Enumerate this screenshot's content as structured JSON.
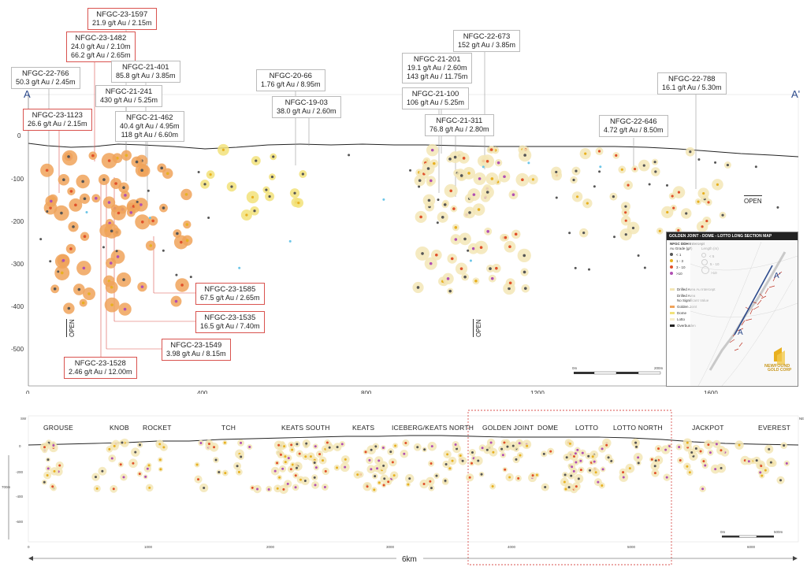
{
  "sections": {
    "start_label": "A",
    "end_label": "A'",
    "open_labels": [
      "OPEN",
      "OPEN",
      "OPEN"
    ]
  },
  "axis_upper": {
    "x_ticks": [
      "0",
      "400",
      "800",
      "1200",
      "1600"
    ],
    "y_ticks": [
      "0",
      "-100",
      "-200",
      "-300",
      "-400",
      "-500"
    ]
  },
  "callouts": [
    {
      "hole": "NFGC-23-1597",
      "lines": [
        "21.9 g/t Au / 2.15m"
      ],
      "style": "red"
    },
    {
      "hole": "NFGC-23-1482",
      "lines": [
        "24.0 g/t Au / 2.10m",
        "66.2 g/t Au / 2.65m"
      ],
      "style": "red"
    },
    {
      "hole": "NFGC-21-401",
      "lines": [
        "85.8 g/t Au / 3.85m"
      ],
      "style": "grey"
    },
    {
      "hole": "NFGC-22-766",
      "lines": [
        "50.3 g/t Au / 2.45m"
      ],
      "style": "grey"
    },
    {
      "hole": "NFGC-21-241",
      "lines": [
        "430 g/t Au / 5.25m"
      ],
      "style": "grey"
    },
    {
      "hole": "NFGC-23-1123",
      "lines": [
        "26.6 g/t Au / 2.15m"
      ],
      "style": "red"
    },
    {
      "hole": "NFGC-21-462",
      "lines": [
        "40.4 g/t Au / 4.95m",
        "118 g/t Au / 6.60m"
      ],
      "style": "grey"
    },
    {
      "hole": "NFGC-20-66",
      "lines": [
        "1.76 g/t Au / 8.95m"
      ],
      "style": "grey"
    },
    {
      "hole": "NFGC-19-03",
      "lines": [
        "38.0 g/t Au / 2.60m"
      ],
      "style": "grey"
    },
    {
      "hole": "NFGC-22-673",
      "lines": [
        "152 g/t Au / 3.85m"
      ],
      "style": "grey"
    },
    {
      "hole": "NFGC-21-201",
      "lines": [
        "19.1 g/t Au / 2.60m",
        "143 g/t Au / 11.75m"
      ],
      "style": "grey"
    },
    {
      "hole": "NFGC-21-100",
      "lines": [
        "106 g/t Au / 5.25m"
      ],
      "style": "grey"
    },
    {
      "hole": "NFGC-21-311",
      "lines": [
        "76.8 g/t Au / 2.80m"
      ],
      "style": "grey"
    },
    {
      "hole": "NFGC-22-788",
      "lines": [
        "16.1 g/t Au / 5.30m"
      ],
      "style": "grey"
    },
    {
      "hole": "NFGC-22-646",
      "lines": [
        "4.72 g/t Au / 8.50m"
      ],
      "style": "grey"
    },
    {
      "hole": "NFGC-23-1585",
      "lines": [
        "67.5 g/t Au / 2.65m"
      ],
      "style": "red"
    },
    {
      "hole": "NFGC-23-1535",
      "lines": [
        "16.5 g/t Au / 7.40m"
      ],
      "style": "red"
    },
    {
      "hole": "NFGC-23-1549",
      "lines": [
        "3.98 g/t Au / 8.15m"
      ],
      "style": "red"
    },
    {
      "hole": "NFGC-23-1528",
      "lines": [
        "2.46 g/t Au / 12.00m"
      ],
      "style": "red"
    }
  ],
  "inset": {
    "title": "GOLDEN JOINT - DOME - LOTTO LONG SECTION MAP",
    "legend_header": "NFGC DDH Intercept",
    "grade_header": "Au Grade (g/t)",
    "length_header": "Length (m)",
    "grades": [
      "< 1",
      "1 - 3",
      "3 - 10",
      ">10"
    ],
    "lengths": [
      "< 5",
      "5 - 10",
      ">10"
    ],
    "areas": [
      "Drilled Area Au Intercept",
      "Drilled Area",
      "No Significant Value",
      "Golden Joint",
      "Dome",
      "Lotto",
      "Overburden"
    ],
    "map_start": "A",
    "map_end": "A'",
    "logo_line1": "NEWFOUND",
    "logo_line2": "GOLD CORP",
    "scale_start": "0m",
    "scale_end": "200m"
  },
  "lower": {
    "deposits": [
      "GROUSE",
      "KNOB",
      "ROCKET",
      "TCH",
      "KEATS SOUTH",
      "KEATS",
      "ICEBERG/KEATS NORTH",
      "GOLDEN JOINT",
      "DOME",
      "LOTTO",
      "LOTTO NORTH",
      "JACKPOT",
      "EVEREST"
    ],
    "sw_label": "SW",
    "ne_label": "NE",
    "depth_scale": "700m",
    "y_ticks": [
      "0",
      "-200",
      "-400",
      "-600"
    ],
    "x_ticks": [
      "0",
      "1000",
      "2000",
      "3000",
      "4000",
      "5000",
      "6000"
    ],
    "scale_start": "0m",
    "scale_end": "500m",
    "length_label": "6km"
  },
  "colors": {
    "orange": "#f0a35a",
    "yellow": "#f2e27a",
    "cream": "#f3e6b6",
    "grey_dot": "#555555",
    "purple_dot": "#b04fb3",
    "red_dot": "#e0502a",
    "gold_dot": "#e8b020",
    "cyan_dot": "#6cc6e8",
    "callout_red": "#d9534f",
    "section_blue": "#2c4a8c"
  }
}
